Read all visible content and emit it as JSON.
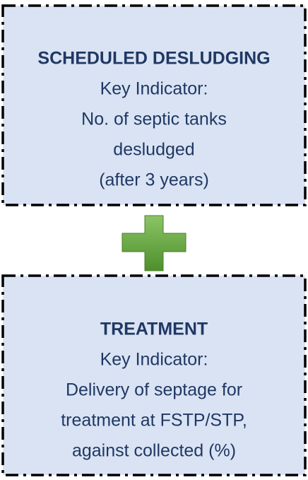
{
  "boxes": [
    {
      "title": "SCHEDULED DESLUDGING",
      "lines": [
        "Key Indicator:",
        "No. of septic tanks",
        "desludged",
        "(after 3 years)"
      ]
    },
    {
      "title": "TREATMENT",
      "lines": [
        "Key Indicator:",
        "Delivery of septage for",
        "treatment at FSTP/STP,",
        "against collected (%)"
      ]
    }
  ]
}
